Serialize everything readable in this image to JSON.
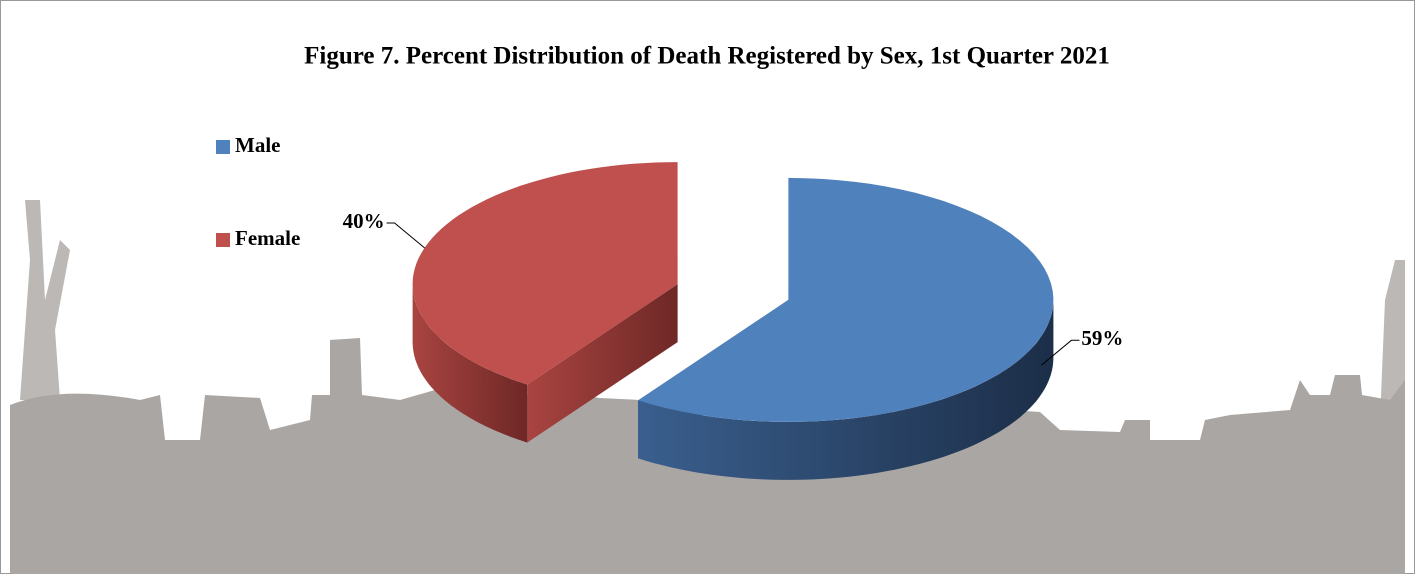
{
  "chart_data": {
    "type": "pie3d",
    "title": "Figure 7. Percent Distribution of Death Registered  by Sex, 1st Quarter 2021",
    "categories": [
      "Male",
      "Female"
    ],
    "values": [
      59,
      40
    ],
    "value_labels": [
      "59%",
      "40%"
    ],
    "colors": [
      "#4f81bd",
      "#c0504d"
    ],
    "legend": "left"
  }
}
